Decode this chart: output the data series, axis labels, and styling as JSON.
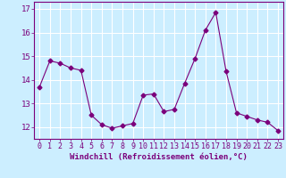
{
  "x": [
    0,
    1,
    2,
    3,
    4,
    5,
    6,
    7,
    8,
    9,
    10,
    11,
    12,
    13,
    14,
    15,
    16,
    17,
    18,
    19,
    20,
    21,
    22,
    23
  ],
  "y": [
    13.7,
    14.8,
    14.7,
    14.5,
    14.4,
    12.5,
    12.1,
    11.95,
    12.05,
    12.15,
    13.35,
    13.4,
    12.65,
    12.75,
    13.85,
    14.9,
    16.1,
    16.85,
    14.35,
    12.6,
    12.45,
    12.3,
    12.2,
    11.85
  ],
  "line_color": "#7b007b",
  "marker": "D",
  "marker_size": 2.5,
  "bg_color": "#cceeff",
  "grid_color": "#ffffff",
  "xlabel": "Windchill (Refroidissement éolien,°C)",
  "ylim": [
    11.5,
    17.3
  ],
  "xlim": [
    -0.5,
    23.5
  ],
  "yticks": [
    12,
    13,
    14,
    15,
    16,
    17
  ],
  "xticks": [
    0,
    1,
    2,
    3,
    4,
    5,
    6,
    7,
    8,
    9,
    10,
    11,
    12,
    13,
    14,
    15,
    16,
    17,
    18,
    19,
    20,
    21,
    22,
    23
  ],
  "tick_color": "#7b007b",
  "label_color": "#7b007b",
  "spine_color": "#7b007b",
  "font_size": 6.5
}
